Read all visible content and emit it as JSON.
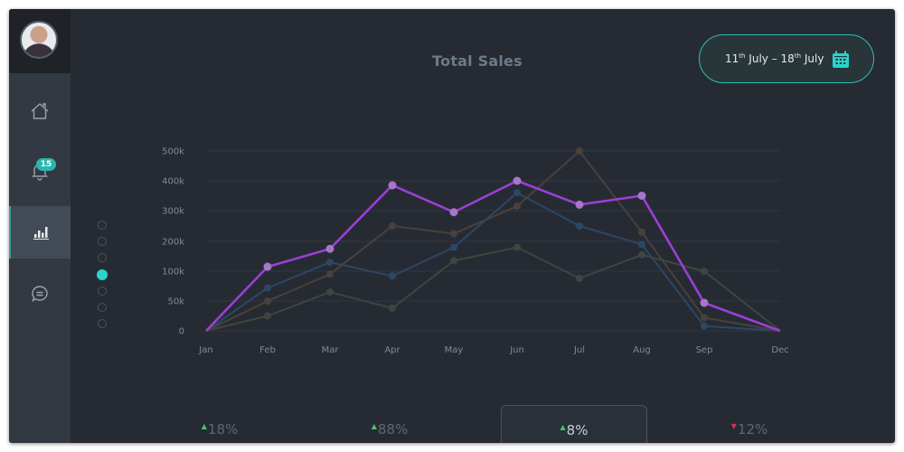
{
  "sidebar": {
    "avatar_alt": "User avatar",
    "items": [
      {
        "name": "home",
        "icon": "home-icon",
        "active": false
      },
      {
        "name": "notifications",
        "icon": "bell-icon",
        "active": false,
        "badge": "15"
      },
      {
        "name": "analytics",
        "icon": "bar-chart-icon",
        "active": true
      },
      {
        "name": "messages",
        "icon": "chat-icon",
        "active": false
      }
    ]
  },
  "pager": {
    "count": 7,
    "active_index": 3
  },
  "header": {
    "title": "Total Sales",
    "date_range": {
      "start_day": "11",
      "start_sup": "th",
      "start_month": "July",
      "sep": "–",
      "end_day": "18",
      "end_sup": "th",
      "end_month": "July"
    },
    "calendar_icon": "calendar-icon"
  },
  "colors": {
    "accent": "#2ad4cc",
    "highlight_series": "#9b3fd6",
    "background": "#262b33",
    "sidebar": "#323942"
  },
  "stats": [
    {
      "value": "18%",
      "trend": "up"
    },
    {
      "value": "88%",
      "trend": "up"
    },
    {
      "value": "8%",
      "trend": "up",
      "active": true
    },
    {
      "value": "12%",
      "trend": "down"
    }
  ],
  "chart_data": {
    "type": "line",
    "title": "Total Sales",
    "xlabel": "",
    "ylabel": "",
    "categories": [
      "Jan",
      "Feb",
      "Mar",
      "Apr",
      "May",
      "Jun",
      "Jul",
      "Aug",
      "Sep",
      "Dec"
    ],
    "y_ticks": [
      "0",
      "50k",
      "100k",
      "200k",
      "300k",
      "400k",
      "500k"
    ],
    "ylim": [
      0,
      500000
    ],
    "grid": true,
    "legend": "none",
    "series": [
      {
        "name": "highlighted",
        "color": "#9b3fd6",
        "values": [
          0,
          115000,
          175000,
          385000,
          295000,
          400000,
          320000,
          350000,
          47000,
          0
        ]
      },
      {
        "name": "series-blue",
        "color": "#2c4766",
        "values": [
          0,
          72000,
          130000,
          92000,
          180000,
          360000,
          250000,
          190000,
          8000,
          0
        ]
      },
      {
        "name": "series-brown",
        "color": "#4a403c",
        "values": [
          0,
          50000,
          95000,
          250000,
          225000,
          315000,
          500000,
          230000,
          22000,
          0
        ]
      },
      {
        "name": "series-olive",
        "color": "#3e4640",
        "values": [
          0,
          25000,
          65000,
          38000,
          135000,
          180000,
          88000,
          155000,
          100000,
          0
        ]
      }
    ]
  }
}
